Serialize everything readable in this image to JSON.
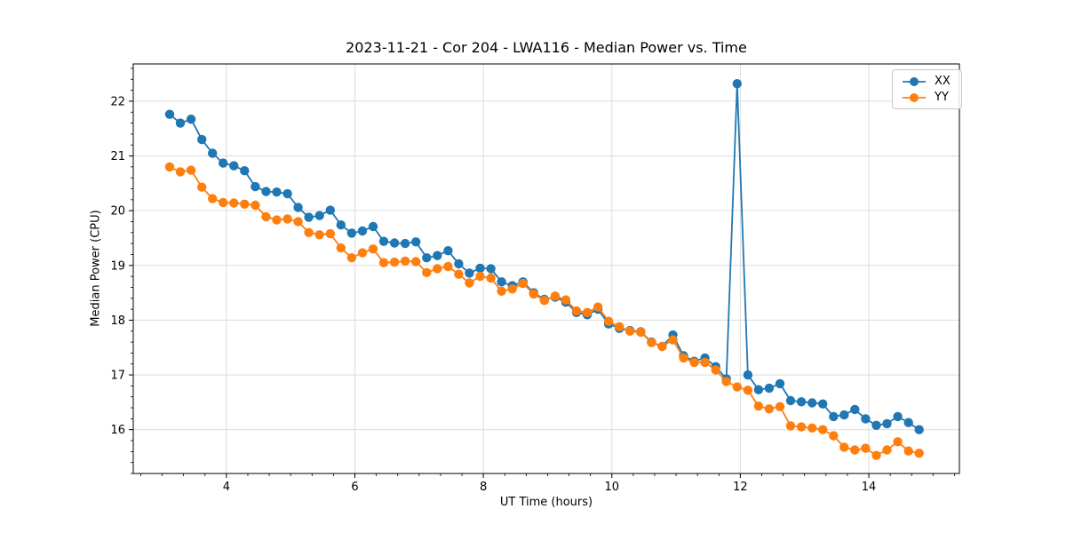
{
  "chart_data": {
    "type": "line",
    "title": "2023-11-21 - Cor 204 - LWA116 - Median Power vs. Time",
    "xlabel": "UT Time (hours)",
    "ylabel": "Median Power (CPU)",
    "xlim": [
      2.55,
      15.41
    ],
    "ylim": [
      15.2,
      22.68
    ],
    "xticks": [
      4,
      6,
      8,
      10,
      12,
      14
    ],
    "yticks": [
      16,
      17,
      18,
      19,
      20,
      21,
      22
    ],
    "x_minor_step": 0.333333,
    "y_minor_step": 0.2,
    "grid": true,
    "legend_position": "upper right",
    "marker": "circle",
    "x": [
      3.117,
      3.283,
      3.45,
      3.617,
      3.783,
      3.95,
      4.117,
      4.283,
      4.45,
      4.617,
      4.783,
      4.95,
      5.117,
      5.283,
      5.45,
      5.617,
      5.783,
      5.95,
      6.117,
      6.283,
      6.45,
      6.617,
      6.783,
      6.95,
      7.117,
      7.283,
      7.45,
      7.617,
      7.783,
      7.95,
      8.117,
      8.283,
      8.45,
      8.617,
      8.783,
      8.95,
      9.117,
      9.283,
      9.45,
      9.617,
      9.783,
      9.95,
      10.117,
      10.283,
      10.45,
      10.617,
      10.783,
      10.95,
      11.117,
      11.283,
      11.45,
      11.617,
      11.783,
      11.95,
      12.117,
      12.283,
      12.45,
      12.617,
      12.783,
      12.95,
      13.117,
      13.283,
      13.45,
      13.617,
      13.783,
      13.95,
      14.117,
      14.283,
      14.45,
      14.617,
      14.783
    ],
    "series": [
      {
        "name": "XX",
        "color": "#1f77b4",
        "values": [
          21.76,
          21.6,
          21.67,
          21.3,
          21.05,
          20.87,
          20.82,
          20.73,
          20.44,
          20.35,
          20.34,
          20.31,
          20.06,
          19.88,
          19.91,
          20.01,
          19.74,
          19.59,
          19.63,
          19.71,
          19.44,
          19.41,
          19.4,
          19.43,
          19.14,
          19.18,
          19.27,
          19.03,
          18.86,
          18.95,
          18.94,
          18.7,
          18.63,
          18.7,
          18.5,
          18.38,
          18.42,
          18.33,
          18.14,
          18.1,
          18.2,
          17.93,
          17.85,
          17.81,
          17.79,
          17.6,
          17.52,
          17.73,
          17.35,
          17.25,
          17.31,
          17.15,
          16.93,
          22.32,
          17.0,
          16.73,
          16.76,
          16.84,
          16.53,
          16.51,
          16.49,
          16.47,
          16.24,
          16.27,
          16.37,
          16.2,
          16.08,
          16.11,
          16.24,
          16.13,
          16.0
        ]
      },
      {
        "name": "YY",
        "color": "#ff7f0e",
        "values": [
          20.8,
          20.71,
          20.74,
          20.43,
          20.22,
          20.15,
          20.14,
          20.12,
          20.1,
          19.89,
          19.83,
          19.85,
          19.8,
          19.6,
          19.56,
          19.58,
          19.32,
          19.14,
          19.23,
          19.3,
          19.05,
          19.06,
          19.08,
          19.07,
          18.87,
          18.94,
          18.98,
          18.84,
          18.68,
          18.8,
          18.77,
          18.53,
          18.57,
          18.67,
          18.48,
          18.36,
          18.44,
          18.37,
          18.17,
          18.14,
          18.24,
          17.98,
          17.88,
          17.8,
          17.78,
          17.59,
          17.52,
          17.64,
          17.31,
          17.23,
          17.23,
          17.09,
          16.88,
          16.78,
          16.72,
          16.43,
          16.38,
          16.42,
          16.07,
          16.05,
          16.03,
          16.0,
          15.89,
          15.68,
          15.63,
          15.66,
          15.53,
          15.63,
          15.78,
          15.61,
          15.57
        ]
      }
    ],
    "colors": {
      "grid": "#dcdcdc",
      "spine": "#000000",
      "text": "#000000",
      "legend_border": "#c8c8c8",
      "background": "#ffffff"
    }
  }
}
